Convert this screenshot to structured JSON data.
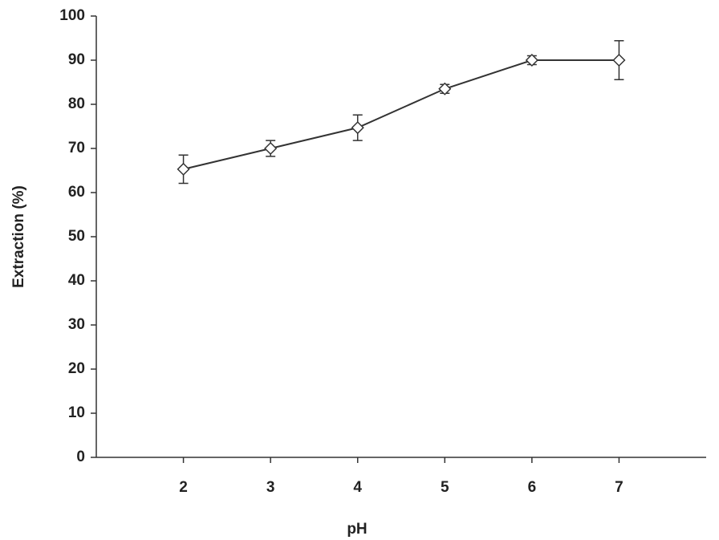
{
  "chart_data": {
    "type": "line",
    "x_label": "pH",
    "y_label": "Extraction (%)",
    "x": [
      2,
      3,
      4,
      5,
      6,
      7
    ],
    "values": [
      65.3,
      70,
      74.7,
      83.5,
      90,
      90
    ],
    "errors": [
      3.2,
      1.8,
      2.9,
      1,
      1,
      4.4
    ],
    "color": "#333333",
    "xlim": [
      1,
      8
    ],
    "xticks": [
      2,
      3,
      4,
      5,
      6,
      7
    ],
    "ylim": [
      0,
      100
    ],
    "yticks": [
      0,
      10,
      20,
      30,
      40,
      50,
      60,
      70,
      80,
      90,
      100
    ]
  }
}
